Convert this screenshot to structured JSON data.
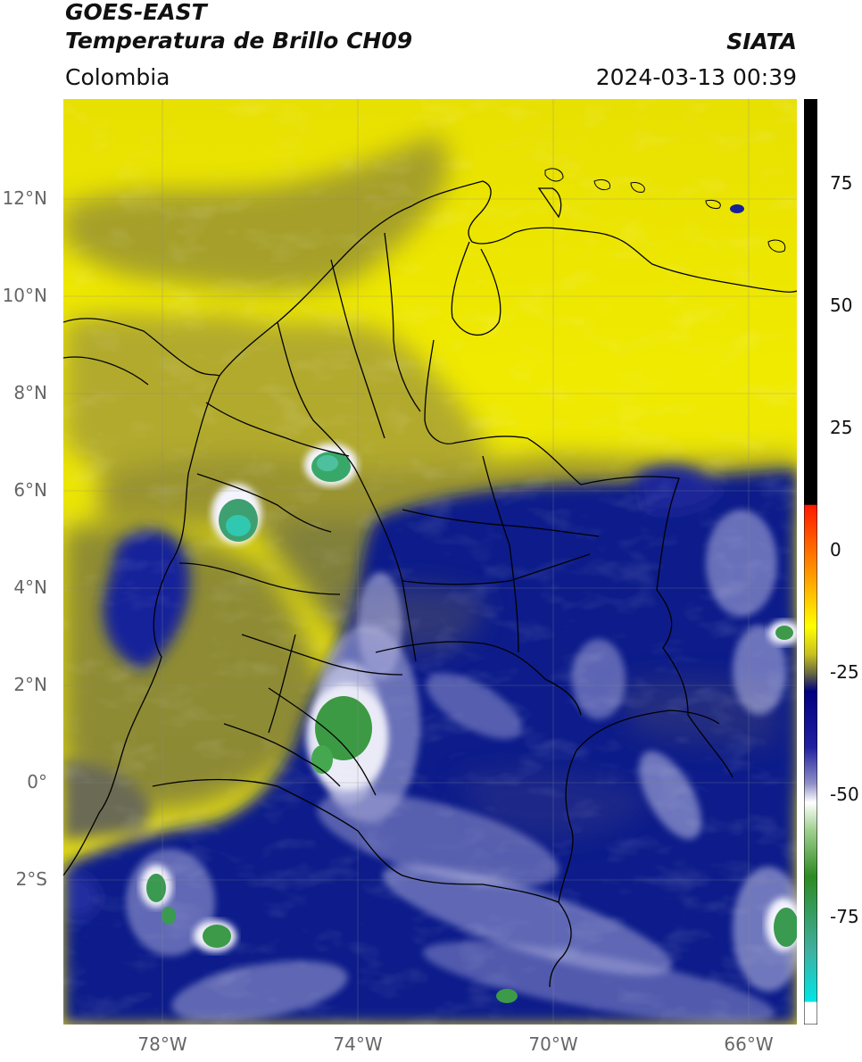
{
  "header": {
    "satellite": "GOES-EAST",
    "product": "Temperatura de Brillo CH09",
    "region": "Colombia",
    "organization": "SIATA",
    "timestamp": "2024-03-13 00:39"
  },
  "map": {
    "lat_range": [
      -5,
      14
    ],
    "lon_range": [
      -80,
      -65
    ],
    "lat_ticks": [
      {
        "value": 12,
        "label": "12°N"
      },
      {
        "value": 10,
        "label": "10°N"
      },
      {
        "value": 8,
        "label": "8°N"
      },
      {
        "value": 6,
        "label": "6°N"
      },
      {
        "value": 4,
        "label": "4°N"
      },
      {
        "value": 2,
        "label": "2°N"
      },
      {
        "value": 0,
        "label": "0°"
      },
      {
        "value": -2,
        "label": "2°S"
      }
    ],
    "lon_ticks": [
      {
        "value": -78,
        "label": "78°W"
      },
      {
        "value": -74,
        "label": "74°W"
      },
      {
        "value": -70,
        "label": "70°W"
      },
      {
        "value": -66,
        "label": "66°W"
      }
    ],
    "gridlines": true
  },
  "colorbar": {
    "unit_range": [
      -95,
      90
    ],
    "ticks": [
      {
        "value": 75,
        "label": "75"
      },
      {
        "value": 50,
        "label": "50"
      },
      {
        "value": 25,
        "label": "25"
      },
      {
        "value": 0,
        "label": "0"
      },
      {
        "value": -25,
        "label": "-25"
      },
      {
        "value": -50,
        "label": "-50"
      },
      {
        "value": -75,
        "label": "-75"
      }
    ],
    "colors": {
      "black_above": "#000000",
      "red": "#ff1a00",
      "orange": "#ffa500",
      "yellow": "#ffff00",
      "olive": "#8a8a30",
      "navy": "#000080",
      "white": "#ffffff",
      "green": "#2e8b22",
      "cyan": "#00e5e5"
    }
  }
}
